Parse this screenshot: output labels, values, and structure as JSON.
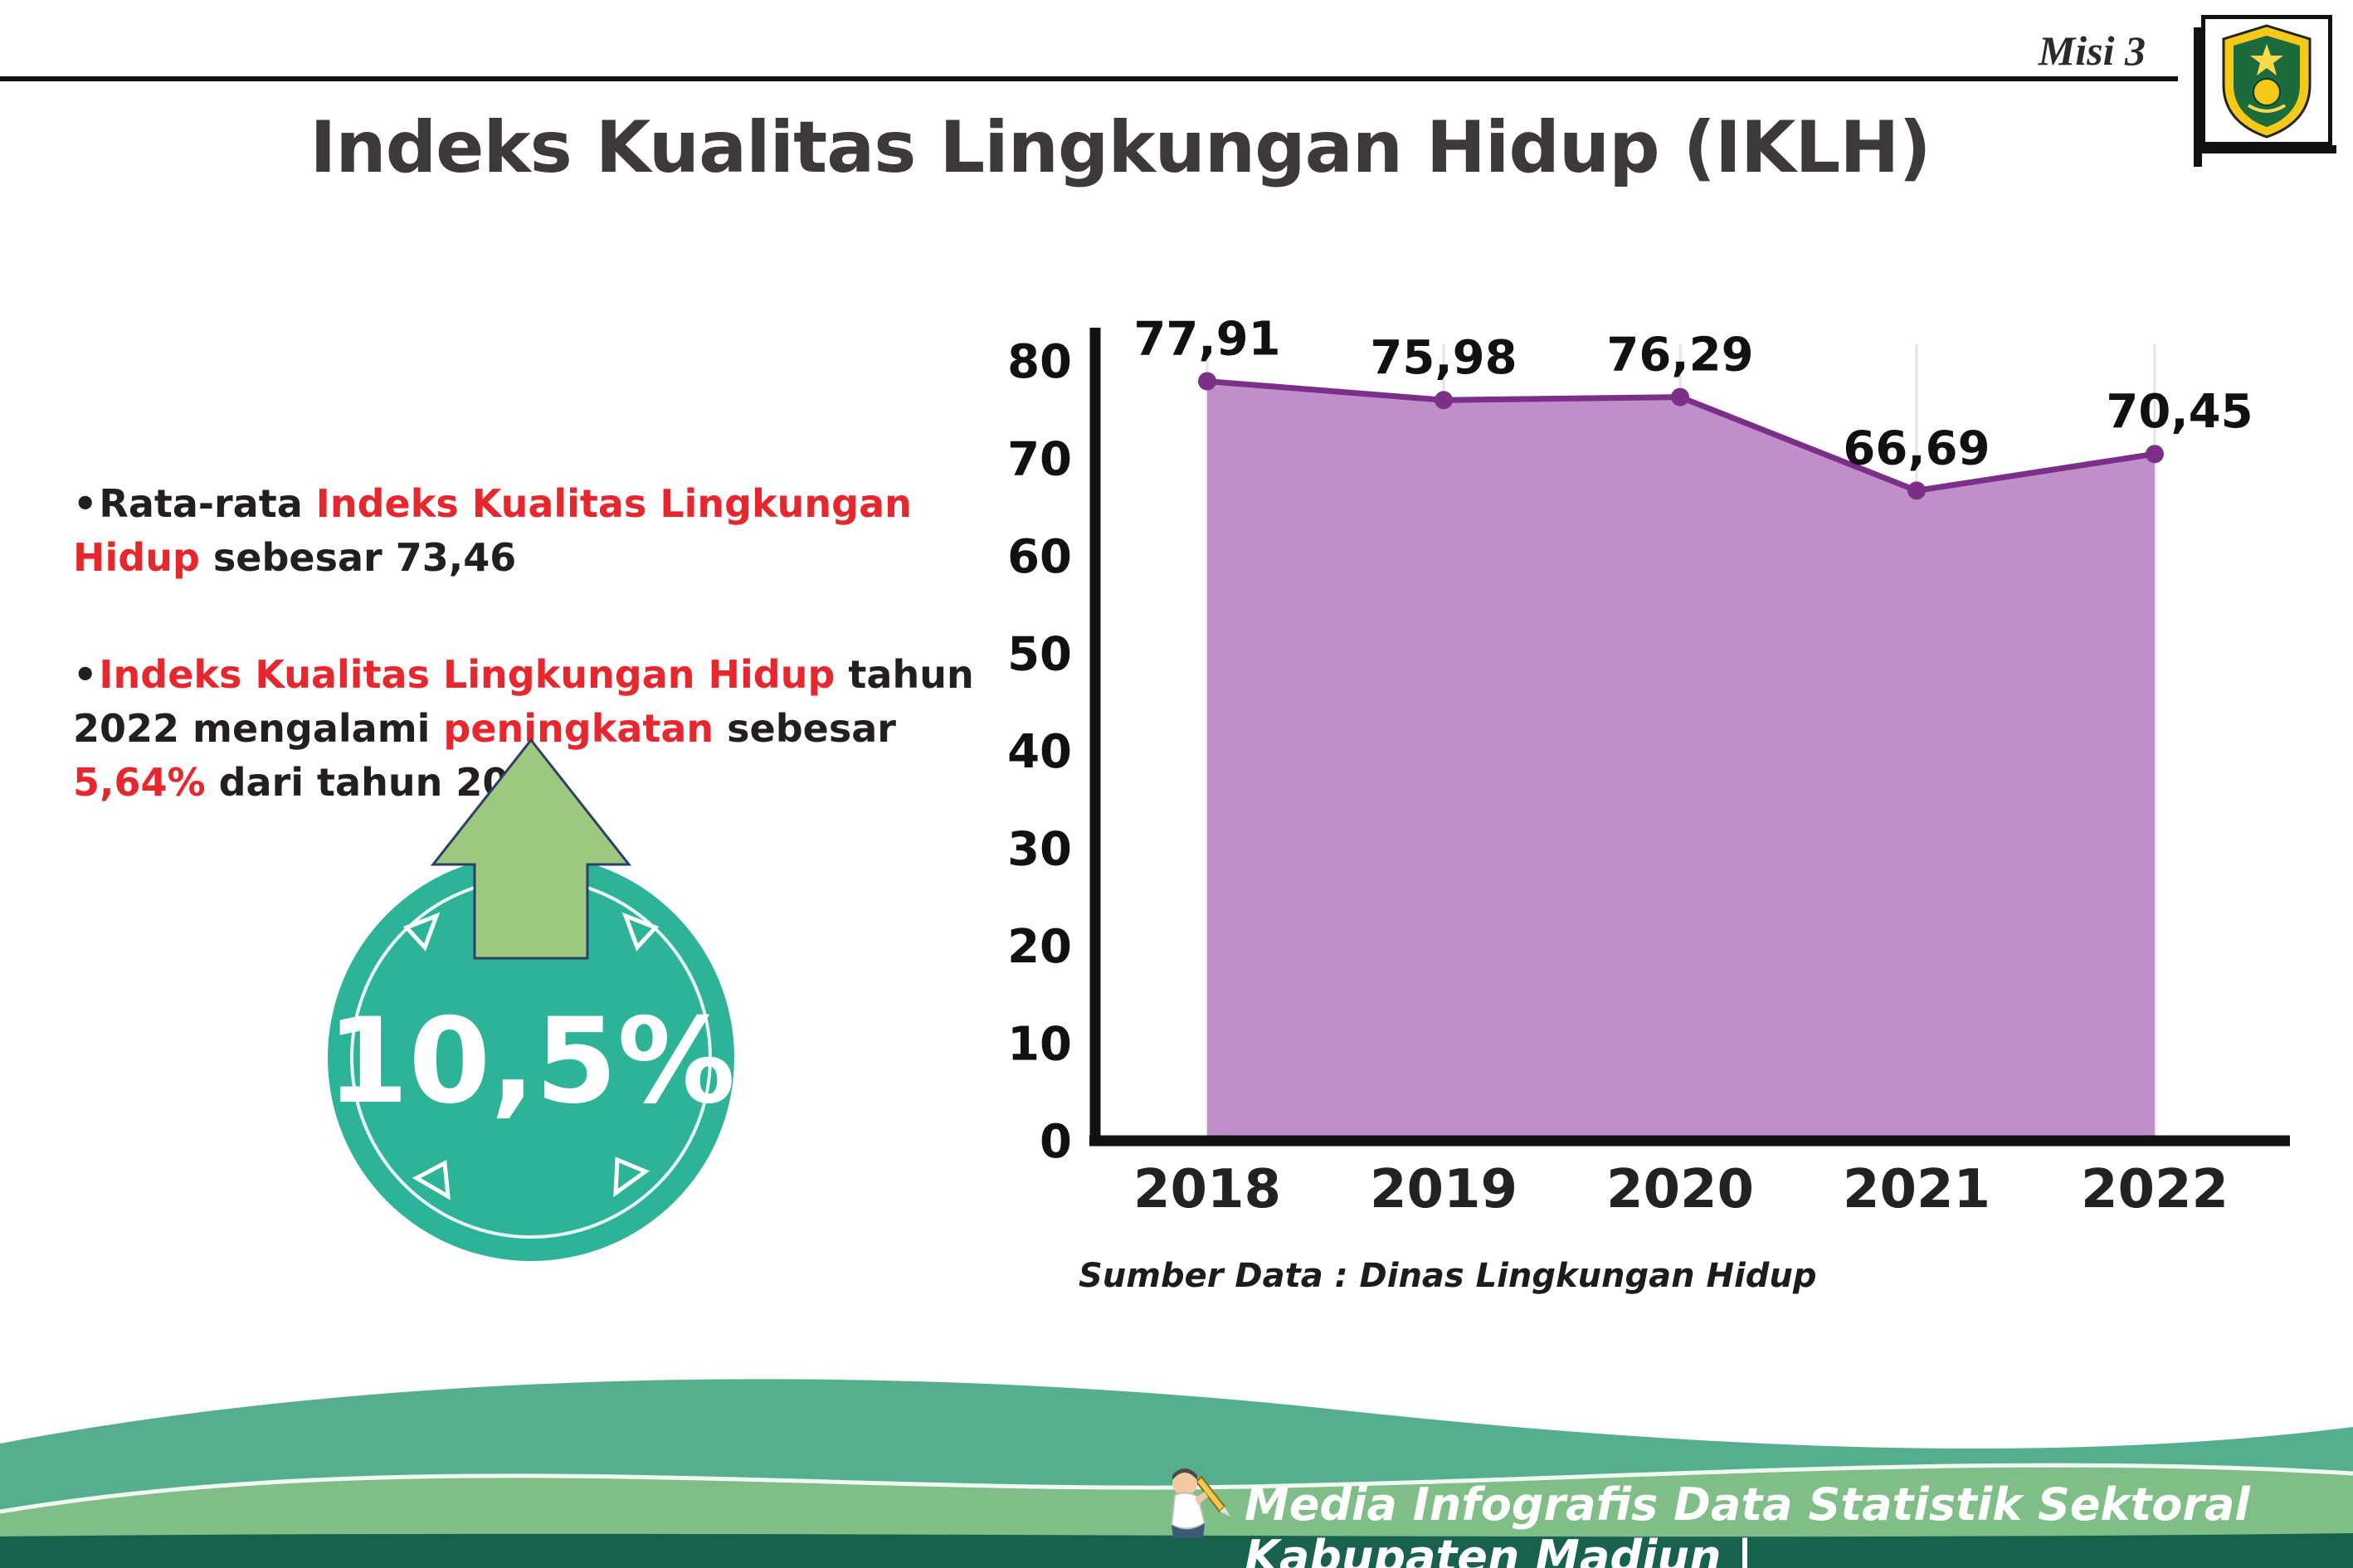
{
  "page": {
    "misi": "Misi 3",
    "title": "Indeks Kualitas Lingkungan Hidup (IKLH)",
    "footer": "Media Infografis Data Statistik Sektoral Kabupaten Madiun |"
  },
  "bullets": {
    "dot": "•",
    "b1_pre": "Rata-rata ",
    "b1_red": "Indeks Kualitas Lingkungan Hidup",
    "b1_post": " sebesar 73,46",
    "b2_red1": "Indeks Kualitas Lingkungan Hidup",
    "b2_mid1": " tahun 2022 mengalami ",
    "b2_red2": "peningkatan",
    "b2_mid2": " sebesar ",
    "b2_red3": "5,64%",
    "b2_post": " dari tahun 2021"
  },
  "badge": {
    "value": "10,5%"
  },
  "chart_data": {
    "type": "area",
    "title": "Indeks Kualitas Lingkungan Hidup (IKLH)",
    "categories": [
      "2018",
      "2019",
      "2020",
      "2021",
      "2022"
    ],
    "values": [
      77.91,
      75.98,
      76.29,
      66.69,
      70.45
    ],
    "value_labels": [
      "77,91",
      "75,98",
      "76,29",
      "66,69",
      "70,45"
    ],
    "ylim": [
      0,
      80
    ],
    "yticks": [
      0,
      10,
      20,
      30,
      40,
      50,
      60,
      70,
      80
    ],
    "grid": "light vertical gridlines per year",
    "legend": "none",
    "source": "Sumber Data : Dinas Lingkungan Hidup"
  },
  "colors": {
    "red_accent": "#e8262d",
    "area_fill": "#c08fca",
    "line_stroke": "#7b2f88",
    "badge_teal": "#2db398",
    "arrow_green": "#9cc87f",
    "footer_teal": "#55ae8d",
    "footer_light_green": "#7fbe86",
    "footer_dark_green": "#17614d",
    "axis_black": "#111111"
  }
}
